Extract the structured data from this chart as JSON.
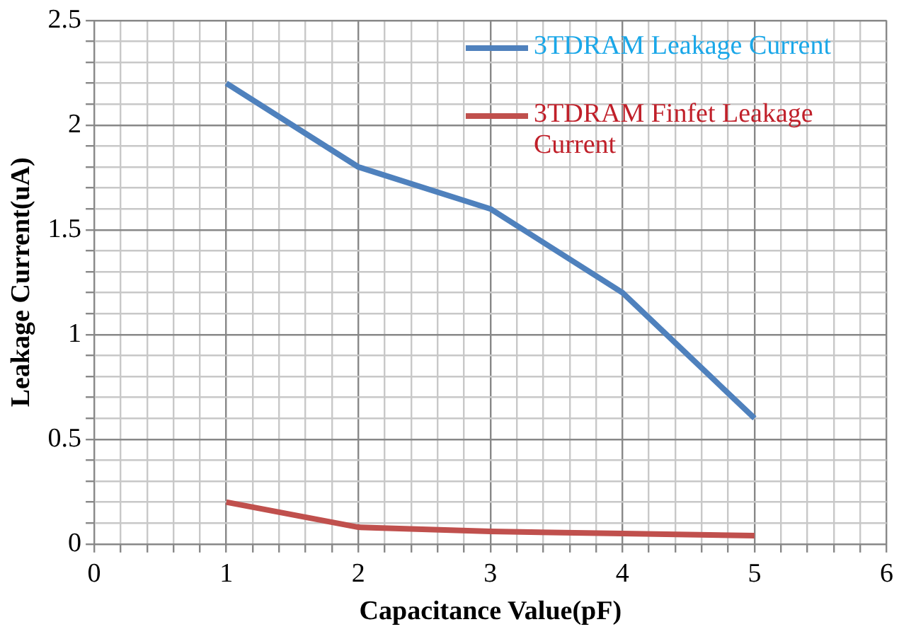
{
  "chart_data": {
    "type": "line",
    "xlabel": "Capacitance Value(pF)",
    "ylabel": "Leakage Current(uA)",
    "x": [
      1,
      2,
      3,
      4,
      5
    ],
    "series": [
      {
        "name": "3TDRAM Leakage Current",
        "color": "#4f81bd",
        "values": [
          2.2,
          1.8,
          1.6,
          1.2,
          0.6
        ]
      },
      {
        "name": "3TDRAM Finfet Leakage Current",
        "color": "#c0504d",
        "values": [
          0.2,
          0.08,
          0.06,
          0.05,
          0.04
        ]
      }
    ],
    "xlim": [
      0,
      6
    ],
    "xticks": [
      0,
      {
        "value": 0.2,
        "label": null
      },
      {
        "value": 0.4,
        "label": null
      },
      {
        "value": 0.6,
        "label": null
      },
      {
        "value": 0.8,
        "label": null
      },
      1,
      {
        "value": 1.2,
        "label": null
      },
      {
        "value": 1.4,
        "label": null
      },
      {
        "value": 1.6,
        "label": null
      },
      {
        "value": 1.8,
        "label": null
      },
      2,
      {
        "value": 2.2,
        "label": null
      },
      {
        "value": 2.4,
        "label": null
      },
      {
        "value": 2.6,
        "label": null
      },
      {
        "value": 2.8,
        "label": null
      },
      3,
      {
        "value": 3.2,
        "label": null
      },
      {
        "value": 3.4,
        "label": null
      },
      {
        "value": 3.6,
        "label": null
      },
      {
        "value": 3.8,
        "label": null
      },
      4,
      {
        "value": 4.2,
        "label": null
      },
      {
        "value": 4.4,
        "label": null
      },
      {
        "value": 4.6,
        "label": null
      },
      {
        "value": 4.8,
        "label": null
      },
      5,
      {
        "value": 5.2,
        "label": null
      },
      {
        "value": 5.4,
        "label": null
      },
      {
        "value": 5.6,
        "label": null
      },
      {
        "value": 5.8,
        "label": null
      },
      6
    ],
    "ylim": [
      0,
      2.5
    ],
    "yticks": [
      0,
      {
        "value": 0.1,
        "label": null
      },
      {
        "value": 0.2,
        "label": null
      },
      {
        "value": 0.3,
        "label": null
      },
      {
        "value": 0.4,
        "label": null
      },
      0.5,
      {
        "value": 0.6,
        "label": null
      },
      {
        "value": 0.7,
        "label": null
      },
      {
        "value": 0.8,
        "label": null
      },
      {
        "value": 0.9,
        "label": null
      },
      1,
      {
        "value": 1.1,
        "label": null
      },
      {
        "value": 1.2,
        "label": null
      },
      {
        "value": 1.3,
        "label": null
      },
      {
        "value": 1.4,
        "label": null
      },
      1.5,
      {
        "value": 1.6,
        "label": null
      },
      {
        "value": 1.7,
        "label": null
      },
      {
        "value": 1.8,
        "label": null
      },
      {
        "value": 1.9,
        "label": null
      },
      2,
      {
        "value": 2.1,
        "label": null
      },
      {
        "value": 2.2,
        "label": null
      },
      {
        "value": 2.3,
        "label": null
      },
      {
        "value": 2.4,
        "label": null
      },
      2.5
    ],
    "grid": true,
    "legend": "top right",
    "marker": "none",
    "line_style": "solid"
  }
}
